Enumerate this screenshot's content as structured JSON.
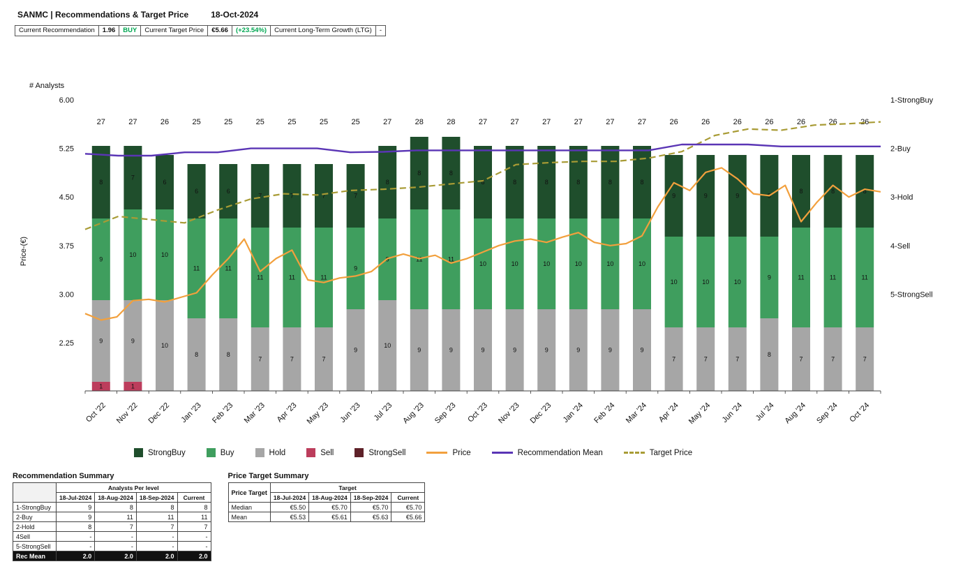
{
  "header": {
    "title": "SANMC | Recommendations & Target Price",
    "date": "18-Oct-2024"
  },
  "summary_bar": {
    "rec_label": "Current Recommendation",
    "rec_value": "1.96",
    "rec_rating": "BUY",
    "target_label": "Current Target Price",
    "target_value": "€5.66",
    "target_upside": "(+23.54%)",
    "ltg_label": "Current Long-Term Growth (LTG)",
    "ltg_value": "-"
  },
  "chart_data": {
    "type": "bar",
    "subtype": "stacked-bars-with-lines",
    "title": "SANMC | Recommendations & Target Price",
    "categories": [
      "Oct '22",
      "Nov '22",
      "Dec '22",
      "Jan '23",
      "Feb '23",
      "Mar '23",
      "Apr '23",
      "May '23",
      "Jun '23",
      "Jul '23",
      "Aug '23",
      "Sep '23",
      "Oct '23",
      "Nov '23",
      "Dec '23",
      "Jan '24",
      "Feb '24",
      "Mar '24",
      "Apr '24",
      "May '24",
      "Jun '24",
      "Jul '24",
      "Aug '24",
      "Sep '24",
      "Oct '24"
    ],
    "totals": [
      27,
      27,
      26,
      25,
      25,
      25,
      25,
      25,
      25,
      27,
      28,
      28,
      27,
      27,
      27,
      27,
      27,
      27,
      26,
      26,
      26,
      26,
      26,
      26,
      26
    ],
    "series": [
      {
        "name": "StrongBuy",
        "color": "#1f4e2c",
        "values": [
          8,
          7,
          6,
          6,
          6,
          7,
          7,
          7,
          7,
          8,
          8,
          8,
          8,
          8,
          8,
          8,
          8,
          8,
          9,
          9,
          9,
          9,
          8,
          8,
          8
        ]
      },
      {
        "name": "Buy",
        "color": "#3f9e5e",
        "values": [
          9,
          10,
          10,
          11,
          11,
          11,
          11,
          11,
          9,
          9,
          11,
          11,
          10,
          10,
          10,
          10,
          10,
          10,
          10,
          10,
          10,
          9,
          11,
          11,
          11
        ]
      },
      {
        "name": "Hold",
        "color": "#a6a6a6",
        "values": [
          9,
          9,
          10,
          8,
          8,
          7,
          7,
          7,
          9,
          10,
          9,
          9,
          9,
          9,
          9,
          9,
          9,
          9,
          7,
          7,
          7,
          8,
          7,
          7,
          7
        ]
      },
      {
        "name": "Sell",
        "color": "#bc3d5c",
        "values": [
          1,
          1,
          0,
          0,
          0,
          0,
          0,
          0,
          0,
          0,
          0,
          0,
          0,
          0,
          0,
          0,
          0,
          0,
          0,
          0,
          0,
          0,
          0,
          0,
          0
        ]
      },
      {
        "name": "StrongSell",
        "color": "#5e2129",
        "values": [
          0,
          0,
          0,
          0,
          0,
          0,
          0,
          0,
          0,
          0,
          0,
          0,
          0,
          0,
          0,
          0,
          0,
          0,
          0,
          0,
          0,
          0,
          0,
          0,
          0
        ]
      }
    ],
    "lines": {
      "price": {
        "name": "Price",
        "color": "#f2a03d",
        "values": [
          2.7,
          2.6,
          2.65,
          2.9,
          2.92,
          2.88,
          2.95,
          3.02,
          3.3,
          3.55,
          3.85,
          3.35,
          3.55,
          3.68,
          3.22,
          3.18,
          3.25,
          3.28,
          3.35,
          3.55,
          3.62,
          3.55,
          3.6,
          3.48,
          3.55,
          3.65,
          3.75,
          3.82,
          3.85,
          3.8,
          3.88,
          3.95,
          3.8,
          3.75,
          3.78,
          3.9,
          4.35,
          4.72,
          4.6,
          4.88,
          4.95,
          4.78,
          4.55,
          4.52,
          4.68,
          4.12,
          4.42,
          4.68,
          4.5,
          4.62,
          4.58
        ]
      },
      "recommendation_mean": {
        "name": "Recommendation Mean",
        "color": "#5a35b5",
        "values": [
          2.11,
          2.15,
          2.15,
          2.08,
          2.08,
          2.0,
          2.0,
          2.0,
          2.08,
          2.07,
          2.04,
          2.04,
          2.04,
          2.04,
          2.04,
          2.04,
          2.04,
          2.04,
          1.92,
          1.92,
          1.92,
          1.96,
          1.96,
          1.96,
          1.96
        ]
      },
      "target_price": {
        "name": "Target Price",
        "color": "#a89b35",
        "values": [
          4.0,
          4.2,
          4.15,
          4.1,
          4.3,
          4.47,
          4.55,
          4.53,
          4.6,
          4.62,
          4.65,
          4.7,
          4.75,
          5.0,
          5.03,
          5.05,
          5.05,
          5.1,
          5.2,
          5.45,
          5.55,
          5.53,
          5.61,
          5.63,
          5.66
        ]
      }
    },
    "axes": {
      "left_label": "Price-(€)",
      "left_ticks": [
        "6.00",
        "5.25",
        "4.50",
        "3.75",
        "3.00",
        "2.25"
      ],
      "right_ticks": [
        "1-StrongBuy",
        "2-Buy",
        "3-Hold",
        "4-Sell",
        "5-StrongSell"
      ],
      "analysts_label": "# Analysts",
      "left_range": [
        1.5,
        6.4
      ],
      "grid": false
    },
    "legend_position": "bottom"
  },
  "legend": {
    "items": [
      {
        "label": "StrongBuy",
        "marker": "square",
        "color": "#1f4e2c"
      },
      {
        "label": "Buy",
        "marker": "square",
        "color": "#3f9e5e"
      },
      {
        "label": "Hold",
        "marker": "square",
        "color": "#a6a6a6"
      },
      {
        "label": "Sell",
        "marker": "square",
        "color": "#bc3d5c"
      },
      {
        "label": "StrongSell",
        "marker": "square",
        "color": "#5e2129"
      },
      {
        "label": "Price",
        "marker": "line",
        "color": "#f2a03d"
      },
      {
        "label": "Recommendation Mean",
        "marker": "line",
        "color": "#5a35b5"
      },
      {
        "label": "Target Price",
        "marker": "dashed-line",
        "color": "#a89b35"
      }
    ]
  },
  "tables": {
    "recommendation_summary": {
      "title": "Recommendation Summary",
      "group_header": "Analysts Per level",
      "columns": [
        "18-Jul-2024",
        "18-Aug-2024",
        "18-Sep-2024",
        "Current"
      ],
      "rows": [
        {
          "label": "1-StrongBuy",
          "values": [
            "9",
            "8",
            "8",
            "8"
          ]
        },
        {
          "label": "2-Buy",
          "values": [
            "9",
            "11",
            "11",
            "11"
          ]
        },
        {
          "label": "2-Hold",
          "values": [
            "8",
            "7",
            "7",
            "7"
          ]
        },
        {
          "label": "4Sell",
          "values": [
            "-",
            "-",
            "-",
            "-"
          ]
        },
        {
          "label": "5-StrongSell",
          "values": [
            "-",
            "-",
            "-",
            "-"
          ]
        }
      ],
      "footer_row": {
        "label": "Rec Mean",
        "values": [
          "2.0",
          "2.0",
          "2.0",
          "2.0"
        ]
      }
    },
    "price_target_summary": {
      "title": "Price Target Summary",
      "corner_label": "Price Target",
      "group_header": "Target",
      "columns": [
        "18-Jul-2024",
        "18-Aug-2024",
        "18-Sep-2024",
        "Current"
      ],
      "rows": [
        {
          "label": "Median",
          "values": [
            "€5.50",
            "€5.70",
            "€5.70",
            "€5.70"
          ]
        },
        {
          "label": "Mean",
          "values": [
            "€5.53",
            "€5.61",
            "€5.63",
            "€5.66"
          ]
        }
      ]
    }
  }
}
